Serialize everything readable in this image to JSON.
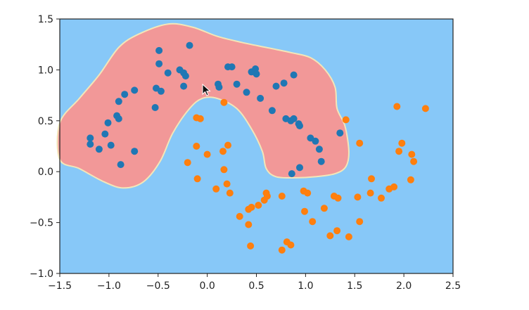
{
  "chart_data": {
    "type": "scatter",
    "title": "",
    "xlabel": "",
    "ylabel": "",
    "xlim": [
      -1.5,
      2.5
    ],
    "ylim": [
      -1.0,
      1.5
    ],
    "grid": false,
    "legend": "none",
    "xticks": [
      "-1.5",
      "-1.0",
      "-0.5",
      "0.0",
      "0.5",
      "1.0",
      "1.5",
      "2.0",
      "2.5"
    ],
    "yticks": [
      "1.5",
      "1.0",
      "0.5",
      "0.0",
      "-0.5",
      "-1.0"
    ],
    "background_region_color": "#87c8f8",
    "decision_region_color": "#f29898",
    "decision_region": [
      [
        -1.5,
        0.48
      ],
      [
        -1.3,
        0.72
      ],
      [
        -1.1,
        0.95
      ],
      [
        -0.9,
        1.22
      ],
      [
        -0.7,
        1.35
      ],
      [
        -0.4,
        1.45
      ],
      [
        -0.15,
        1.42
      ],
      [
        0.1,
        1.33
      ],
      [
        0.35,
        1.27
      ],
      [
        0.6,
        1.22
      ],
      [
        0.85,
        1.17
      ],
      [
        1.05,
        1.12
      ],
      [
        1.2,
        1.0
      ],
      [
        1.3,
        0.83
      ],
      [
        1.32,
        0.62
      ],
      [
        1.4,
        0.45
      ],
      [
        1.44,
        0.2
      ],
      [
        1.41,
        0.05
      ],
      [
        1.3,
        -0.02
      ],
      [
        1.1,
        -0.05
      ],
      [
        0.9,
        -0.06
      ],
      [
        0.7,
        -0.05
      ],
      [
        0.6,
        0.03
      ],
      [
        0.56,
        0.2
      ],
      [
        0.45,
        0.42
      ],
      [
        0.3,
        0.62
      ],
      [
        0.1,
        0.72
      ],
      [
        -0.05,
        0.72
      ],
      [
        -0.18,
        0.62
      ],
      [
        -0.35,
        0.38
      ],
      [
        -0.48,
        0.1
      ],
      [
        -0.65,
        -0.1
      ],
      [
        -0.85,
        -0.16
      ],
      [
        -1.05,
        -0.1
      ],
      [
        -1.3,
        0.03
      ],
      [
        -1.5,
        0.12
      ]
    ],
    "series": [
      {
        "color": "#1f77b4",
        "points": [
          [
            -1.19,
            0.33
          ],
          [
            -1.19,
            0.27
          ],
          [
            -1.1,
            0.22
          ],
          [
            -1.04,
            0.37
          ],
          [
            -1.01,
            0.48
          ],
          [
            -0.98,
            0.26
          ],
          [
            -0.92,
            0.55
          ],
          [
            -0.9,
            0.52
          ],
          [
            -0.88,
            0.07
          ],
          [
            -0.9,
            0.69
          ],
          [
            -0.84,
            0.76
          ],
          [
            -0.74,
            0.8
          ],
          [
            -0.74,
            0.2
          ],
          [
            -0.53,
            0.63
          ],
          [
            -0.52,
            0.82
          ],
          [
            -0.47,
            0.79
          ],
          [
            -0.49,
            1.19
          ],
          [
            -0.49,
            1.06
          ],
          [
            -0.4,
            0.97
          ],
          [
            -0.28,
            1.0
          ],
          [
            -0.24,
            0.97
          ],
          [
            -0.22,
            0.94
          ],
          [
            -0.24,
            0.84
          ],
          [
            -0.18,
            1.24
          ],
          [
            0.11,
            0.86
          ],
          [
            0.12,
            0.83
          ],
          [
            0.21,
            1.03
          ],
          [
            0.25,
            1.03
          ],
          [
            0.3,
            0.86
          ],
          [
            0.4,
            0.78
          ],
          [
            0.45,
            0.98
          ],
          [
            0.49,
            1.01
          ],
          [
            0.5,
            0.96
          ],
          [
            0.54,
            0.72
          ],
          [
            0.66,
            0.6
          ],
          [
            0.7,
            0.84
          ],
          [
            0.78,
            0.87
          ],
          [
            0.8,
            0.52
          ],
          [
            0.85,
            0.5
          ],
          [
            0.88,
            0.95
          ],
          [
            0.88,
            0.52
          ],
          [
            0.93,
            0.47
          ],
          [
            0.94,
            0.45
          ],
          [
            0.86,
            -0.02
          ],
          [
            0.94,
            0.04
          ],
          [
            1.05,
            0.33
          ],
          [
            1.1,
            0.3
          ],
          [
            1.14,
            0.22
          ],
          [
            1.16,
            0.1
          ],
          [
            1.35,
            0.38
          ]
        ]
      },
      {
        "color": "#ff7f0e",
        "points": [
          [
            -0.11,
            0.53
          ],
          [
            -0.07,
            0.52
          ],
          [
            0.17,
            0.68
          ],
          [
            -0.11,
            0.25
          ],
          [
            -0.2,
            0.09
          ],
          [
            -0.1,
            -0.07
          ],
          [
            0.0,
            0.17
          ],
          [
            0.16,
            0.2
          ],
          [
            0.21,
            0.26
          ],
          [
            0.17,
            0.02
          ],
          [
            0.2,
            -0.12
          ],
          [
            0.23,
            -0.21
          ],
          [
            0.09,
            -0.17
          ],
          [
            0.33,
            -0.44
          ],
          [
            0.42,
            -0.37
          ],
          [
            0.45,
            -0.35
          ],
          [
            0.42,
            -0.52
          ],
          [
            0.44,
            -0.73
          ],
          [
            0.58,
            -0.28
          ],
          [
            0.61,
            -0.24
          ],
          [
            0.6,
            -0.21
          ],
          [
            0.52,
            -0.33
          ],
          [
            0.76,
            -0.24
          ],
          [
            0.76,
            -0.77
          ],
          [
            0.81,
            -0.69
          ],
          [
            0.85,
            -0.72
          ],
          [
            0.98,
            -0.19
          ],
          [
            1.02,
            -0.21
          ],
          [
            0.99,
            -0.39
          ],
          [
            1.07,
            -0.49
          ],
          [
            1.19,
            -0.36
          ],
          [
            1.25,
            -0.63
          ],
          [
            1.29,
            -0.24
          ],
          [
            1.33,
            -0.26
          ],
          [
            1.32,
            -0.58
          ],
          [
            1.44,
            -0.64
          ],
          [
            1.53,
            -0.25
          ],
          [
            1.55,
            -0.49
          ],
          [
            1.55,
            0.28
          ],
          [
            1.41,
            0.51
          ],
          [
            1.66,
            -0.21
          ],
          [
            1.67,
            -0.07
          ],
          [
            1.77,
            -0.26
          ],
          [
            1.85,
            -0.17
          ],
          [
            1.9,
            -0.15
          ],
          [
            1.93,
            0.64
          ],
          [
            1.95,
            0.2
          ],
          [
            1.98,
            0.28
          ],
          [
            2.07,
            -0.08
          ],
          [
            2.08,
            0.17
          ],
          [
            2.1,
            0.1
          ],
          [
            2.22,
            0.62
          ]
        ]
      }
    ]
  }
}
